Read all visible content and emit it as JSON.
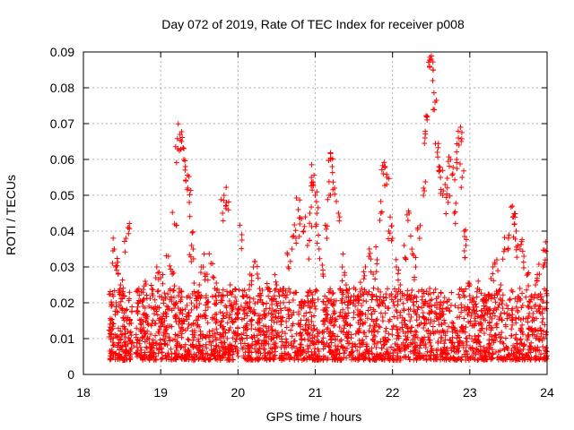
{
  "chart_data": {
    "type": "scatter",
    "title": "Day 072 of 2019, Rate Of TEC Index for receiver p008",
    "xlabel": "GPS time / hours",
    "ylabel": "ROTI / TECUs",
    "xlim": [
      18,
      24
    ],
    "ylim": [
      0,
      0.09
    ],
    "xticks": [
      18,
      19,
      20,
      21,
      22,
      23,
      24
    ],
    "yticks": [
      0,
      0.01,
      0.02,
      0.03,
      0.04,
      0.05,
      0.06,
      0.07,
      0.08,
      0.09
    ],
    "xtick_labels": [
      "18",
      "19",
      "20",
      "21",
      "22",
      "23",
      "24"
    ],
    "ytick_labels": [
      "0",
      "0.01",
      "0.02",
      "0.03",
      "0.04",
      "0.05",
      "0.06",
      "0.07",
      "0.08",
      "0.09"
    ],
    "grid": true,
    "marker": "+",
    "color": "#ff0000",
    "series": [
      {
        "name": "p008",
        "points": [
          [
            18.35,
            0.012
          ],
          [
            18.38,
            0.009
          ],
          [
            18.4,
            0.035
          ],
          [
            18.42,
            0.03
          ],
          [
            18.45,
            0.028
          ],
          [
            18.48,
            0.025
          ],
          [
            18.5,
            0.018
          ],
          [
            18.52,
            0.022
          ],
          [
            18.55,
            0.038
          ],
          [
            18.58,
            0.041
          ],
          [
            18.6,
            0.015
          ],
          [
            18.63,
            0.009
          ],
          [
            18.7,
            0.02
          ],
          [
            18.75,
            0.012
          ],
          [
            18.8,
            0.026
          ],
          [
            18.85,
            0.01
          ],
          [
            18.9,
            0.022
          ],
          [
            18.95,
            0.03
          ],
          [
            19.0,
            0.027
          ],
          [
            19.05,
            0.015
          ],
          [
            19.1,
            0.033
          ],
          [
            19.15,
            0.028
          ],
          [
            19.18,
            0.042
          ],
          [
            19.2,
            0.02
          ],
          [
            19.22,
            0.063
          ],
          [
            19.25,
            0.067
          ],
          [
            19.27,
            0.065
          ],
          [
            19.3,
            0.06
          ],
          [
            19.32,
            0.058
          ],
          [
            19.35,
            0.052
          ],
          [
            19.37,
            0.048
          ],
          [
            19.4,
            0.036
          ],
          [
            19.42,
            0.035
          ],
          [
            19.45,
            0.022
          ],
          [
            19.5,
            0.025
          ],
          [
            19.55,
            0.03
          ],
          [
            19.6,
            0.028
          ],
          [
            19.65,
            0.031
          ],
          [
            19.7,
            0.024
          ],
          [
            19.75,
            0.022
          ],
          [
            19.8,
            0.045
          ],
          [
            19.82,
            0.05
          ],
          [
            19.85,
            0.048
          ],
          [
            19.9,
            0.025
          ],
          [
            19.95,
            0.02
          ],
          [
            20.0,
            0.018
          ],
          [
            20.05,
            0.039
          ],
          [
            20.1,
            0.02
          ],
          [
            20.15,
            0.025
          ],
          [
            20.2,
            0.03
          ],
          [
            20.25,
            0.028
          ],
          [
            20.3,
            0.022
          ],
          [
            20.35,
            0.016
          ],
          [
            20.4,
            0.024
          ],
          [
            20.45,
            0.018
          ],
          [
            20.5,
            0.025
          ],
          [
            20.55,
            0.02
          ],
          [
            20.6,
            0.022
          ],
          [
            20.65,
            0.03
          ],
          [
            20.7,
            0.035
          ],
          [
            20.75,
            0.038
          ],
          [
            20.78,
            0.046
          ],
          [
            20.8,
            0.042
          ],
          [
            20.85,
            0.04
          ],
          [
            20.9,
            0.036
          ],
          [
            20.93,
            0.045
          ],
          [
            20.95,
            0.055
          ],
          [
            20.97,
            0.053
          ],
          [
            21.0,
            0.05
          ],
          [
            21.02,
            0.045
          ],
          [
            21.05,
            0.035
          ],
          [
            21.1,
            0.028
          ],
          [
            21.15,
            0.038
          ],
          [
            21.18,
            0.05
          ],
          [
            21.2,
            0.06
          ],
          [
            21.22,
            0.058
          ],
          [
            21.25,
            0.052
          ],
          [
            21.3,
            0.045
          ],
          [
            21.35,
            0.03
          ],
          [
            21.4,
            0.025
          ],
          [
            21.45,
            0.02
          ],
          [
            21.5,
            0.022
          ],
          [
            21.55,
            0.018
          ],
          [
            21.6,
            0.024
          ],
          [
            21.65,
            0.03
          ],
          [
            21.7,
            0.035
          ],
          [
            21.75,
            0.028
          ],
          [
            21.8,
            0.032
          ],
          [
            21.85,
            0.045
          ],
          [
            21.88,
            0.056
          ],
          [
            21.9,
            0.058
          ],
          [
            21.93,
            0.055
          ],
          [
            21.95,
            0.04
          ],
          [
            22.0,
            0.038
          ],
          [
            22.05,
            0.03
          ],
          [
            22.1,
            0.025
          ],
          [
            22.15,
            0.036
          ],
          [
            22.2,
            0.043
          ],
          [
            22.25,
            0.035
          ],
          [
            22.3,
            0.03
          ],
          [
            22.35,
            0.038
          ],
          [
            22.4,
            0.05
          ],
          [
            22.42,
            0.066
          ],
          [
            22.45,
            0.072
          ],
          [
            22.48,
            0.086
          ],
          [
            22.5,
            0.088
          ],
          [
            22.52,
            0.082
          ],
          [
            22.55,
            0.076
          ],
          [
            22.58,
            0.062
          ],
          [
            22.6,
            0.058
          ],
          [
            22.62,
            0.055
          ],
          [
            22.65,
            0.05
          ],
          [
            22.68,
            0.053
          ],
          [
            22.72,
            0.048
          ],
          [
            22.75,
            0.06
          ],
          [
            22.78,
            0.056
          ],
          [
            22.8,
            0.045
          ],
          [
            22.83,
            0.06
          ],
          [
            22.86,
            0.064
          ],
          [
            22.88,
            0.069
          ],
          [
            22.9,
            0.055
          ],
          [
            22.93,
            0.04
          ],
          [
            22.95,
            0.036
          ],
          [
            23.0,
            0.025
          ],
          [
            23.05,
            0.018
          ],
          [
            23.1,
            0.024
          ],
          [
            23.15,
            0.016
          ],
          [
            23.2,
            0.02
          ],
          [
            23.25,
            0.018
          ],
          [
            23.3,
            0.03
          ],
          [
            23.35,
            0.032
          ],
          [
            23.4,
            0.025
          ],
          [
            23.45,
            0.035
          ],
          [
            23.5,
            0.038
          ],
          [
            23.55,
            0.047
          ],
          [
            23.58,
            0.042
          ],
          [
            23.6,
            0.04
          ],
          [
            23.62,
            0.036
          ],
          [
            23.65,
            0.035
          ],
          [
            23.7,
            0.033
          ],
          [
            23.75,
            0.028
          ],
          [
            23.8,
            0.022
          ],
          [
            23.85,
            0.025
          ],
          [
            23.9,
            0.028
          ],
          [
            23.95,
            0.03
          ],
          [
            23.98,
            0.037
          ]
        ]
      }
    ]
  }
}
